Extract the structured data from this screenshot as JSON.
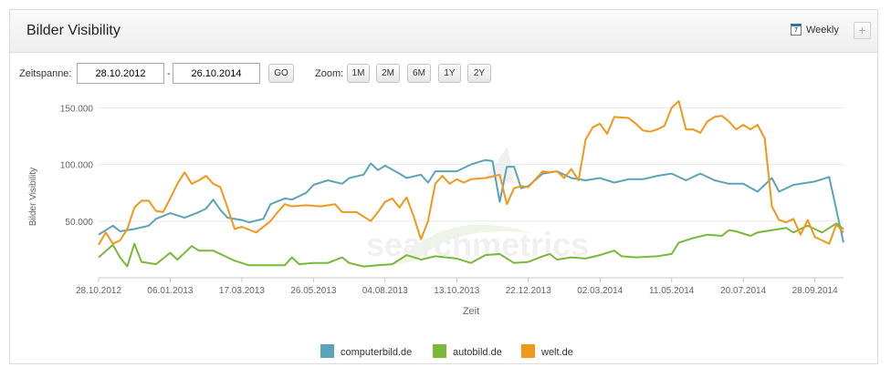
{
  "header": {
    "title": "Bilder Visibility",
    "weekly_label": "Weekly",
    "calendar_glyph": "7",
    "plus_label": "+"
  },
  "toolbar": {
    "range_label": "Zeitspanne:",
    "date_from": "28.10.2012",
    "date_to": "26.10.2014",
    "separator": "-",
    "go_label": "GO",
    "zoom_label": "Zoom:",
    "zoom_buttons": [
      "1M",
      "2M",
      "6M",
      "1Y",
      "2Y"
    ]
  },
  "chart_data": {
    "type": "line",
    "ylabel": "Bilder Visibility",
    "xlabel": "Zeit",
    "ylim": [
      0,
      160000
    ],
    "yticks": [
      50000,
      100000,
      150000
    ],
    "ytick_labels": [
      "50.000",
      "100.000",
      "150.000"
    ],
    "xlim": [
      "2012-10-28",
      "2014-10-26"
    ],
    "xticks": [
      "2012-10-28",
      "2013-01-06",
      "2013-03-17",
      "2013-05-26",
      "2013-08-04",
      "2013-10-13",
      "2013-12-22",
      "2014-03-02",
      "2014-05-11",
      "2014-07-20",
      "2014-09-28"
    ],
    "xtick_labels": [
      "28.10.2012",
      "06.01.2013",
      "17.03.2013",
      "26.05.2013",
      "04.08.2013",
      "13.10.2013",
      "22.12.2013",
      "02.03.2014",
      "11.05.2014",
      "20.07.2014",
      "28.09.2014"
    ],
    "grid": "horizontal",
    "legend": "bottom-center",
    "background_logo": "searchmetrics",
    "series": [
      {
        "name": "computerbild.de",
        "color": "#5ba3b8",
        "points": [
          [
            "2012-10-28",
            38000
          ],
          [
            "2012-11-11",
            46000
          ],
          [
            "2012-11-18",
            41000
          ],
          [
            "2012-12-02",
            43000
          ],
          [
            "2012-12-16",
            46000
          ],
          [
            "2012-12-23",
            52000
          ],
          [
            "2013-01-06",
            57000
          ],
          [
            "2013-01-20",
            53000
          ],
          [
            "2013-02-03",
            58000
          ],
          [
            "2013-02-10",
            61000
          ],
          [
            "2013-02-17",
            69000
          ],
          [
            "2013-02-24",
            60000
          ],
          [
            "2013-03-03",
            53000
          ],
          [
            "2013-03-17",
            51000
          ],
          [
            "2013-03-24",
            49000
          ],
          [
            "2013-04-07",
            52000
          ],
          [
            "2013-04-14",
            65000
          ],
          [
            "2013-04-28",
            70000
          ],
          [
            "2013-05-05",
            69000
          ],
          [
            "2013-05-19",
            75000
          ],
          [
            "2013-05-26",
            82000
          ],
          [
            "2013-06-09",
            86000
          ],
          [
            "2013-06-23",
            83000
          ],
          [
            "2013-06-30",
            88000
          ],
          [
            "2013-07-14",
            91000
          ],
          [
            "2013-07-21",
            101000
          ],
          [
            "2013-07-28",
            95000
          ],
          [
            "2013-08-04",
            99000
          ],
          [
            "2013-08-18",
            92000
          ],
          [
            "2013-08-25",
            88000
          ],
          [
            "2013-09-08",
            91000
          ],
          [
            "2013-09-15",
            84000
          ],
          [
            "2013-09-22",
            94000
          ],
          [
            "2013-10-13",
            94000
          ],
          [
            "2013-10-27",
            100000
          ],
          [
            "2013-11-10",
            104000
          ],
          [
            "2013-11-17",
            103000
          ],
          [
            "2013-11-24",
            67000
          ],
          [
            "2013-12-01",
            98000
          ],
          [
            "2013-12-08",
            98000
          ],
          [
            "2013-12-15",
            79000
          ],
          [
            "2013-12-22",
            81000
          ],
          [
            "2014-01-05",
            92000
          ],
          [
            "2014-01-19",
            94000
          ],
          [
            "2014-02-02",
            88000
          ],
          [
            "2014-02-16",
            86000
          ],
          [
            "2014-03-02",
            88000
          ],
          [
            "2014-03-16",
            84000
          ],
          [
            "2014-03-30",
            87000
          ],
          [
            "2014-04-13",
            87000
          ],
          [
            "2014-04-27",
            90000
          ],
          [
            "2014-05-11",
            92000
          ],
          [
            "2014-05-25",
            86000
          ],
          [
            "2014-06-08",
            92000
          ],
          [
            "2014-06-22",
            86000
          ],
          [
            "2014-07-06",
            83000
          ],
          [
            "2014-07-20",
            83000
          ],
          [
            "2014-08-03",
            76000
          ],
          [
            "2014-08-17",
            88000
          ],
          [
            "2014-08-24",
            76000
          ],
          [
            "2014-09-07",
            82000
          ],
          [
            "2014-09-28",
            85000
          ],
          [
            "2014-10-12",
            89000
          ],
          [
            "2014-10-26",
            31000
          ]
        ]
      },
      {
        "name": "autobild.de",
        "color": "#78b83a",
        "points": [
          [
            "2012-10-28",
            18000
          ],
          [
            "2012-11-11",
            29000
          ],
          [
            "2012-11-18",
            18000
          ],
          [
            "2012-11-25",
            10000
          ],
          [
            "2012-12-02",
            30000
          ],
          [
            "2012-12-09",
            14000
          ],
          [
            "2012-12-23",
            12000
          ],
          [
            "2013-01-06",
            22000
          ],
          [
            "2013-01-13",
            16000
          ],
          [
            "2013-01-27",
            28000
          ],
          [
            "2013-02-03",
            24000
          ],
          [
            "2013-02-17",
            24000
          ],
          [
            "2013-03-03",
            18000
          ],
          [
            "2013-03-10",
            15000
          ],
          [
            "2013-03-24",
            11000
          ],
          [
            "2013-04-07",
            11000
          ],
          [
            "2013-04-28",
            11000
          ],
          [
            "2013-05-05",
            18000
          ],
          [
            "2013-05-12",
            12000
          ],
          [
            "2013-05-26",
            13000
          ],
          [
            "2013-06-09",
            13000
          ],
          [
            "2013-06-23",
            18000
          ],
          [
            "2013-06-30",
            13000
          ],
          [
            "2013-07-14",
            10000
          ],
          [
            "2013-07-28",
            11000
          ],
          [
            "2013-08-11",
            12000
          ],
          [
            "2013-08-25",
            20000
          ],
          [
            "2013-09-08",
            16000
          ],
          [
            "2013-09-22",
            19000
          ],
          [
            "2013-10-13",
            17000
          ],
          [
            "2013-10-27",
            13000
          ],
          [
            "2013-11-10",
            20000
          ],
          [
            "2013-11-24",
            21000
          ],
          [
            "2013-12-08",
            13000
          ],
          [
            "2013-12-22",
            14000
          ],
          [
            "2014-01-05",
            19000
          ],
          [
            "2014-01-12",
            21000
          ],
          [
            "2014-01-19",
            16000
          ],
          [
            "2014-02-02",
            18000
          ],
          [
            "2014-02-16",
            17000
          ],
          [
            "2014-03-02",
            20000
          ],
          [
            "2014-03-16",
            24000
          ],
          [
            "2014-03-23",
            19000
          ],
          [
            "2014-04-06",
            18000
          ],
          [
            "2014-04-27",
            19000
          ],
          [
            "2014-05-11",
            21000
          ],
          [
            "2014-05-18",
            31000
          ],
          [
            "2014-06-01",
            35000
          ],
          [
            "2014-06-15",
            38000
          ],
          [
            "2014-06-29",
            37000
          ],
          [
            "2014-07-06",
            42000
          ],
          [
            "2014-07-13",
            41000
          ],
          [
            "2014-07-27",
            37000
          ],
          [
            "2014-08-03",
            40000
          ],
          [
            "2014-08-17",
            42000
          ],
          [
            "2014-08-31",
            44000
          ],
          [
            "2014-09-07",
            40000
          ],
          [
            "2014-09-21",
            46000
          ],
          [
            "2014-10-05",
            40000
          ],
          [
            "2014-10-19",
            48000
          ],
          [
            "2014-10-26",
            43000
          ]
        ]
      },
      {
        "name": "welt.de",
        "color": "#f0981c",
        "points": [
          [
            "2012-10-28",
            29000
          ],
          [
            "2012-11-04",
            40000
          ],
          [
            "2012-11-11",
            30000
          ],
          [
            "2012-11-18",
            33000
          ],
          [
            "2012-11-25",
            43000
          ],
          [
            "2012-12-02",
            62000
          ],
          [
            "2012-12-09",
            68000
          ],
          [
            "2012-12-16",
            68000
          ],
          [
            "2012-12-23",
            59000
          ],
          [
            "2012-12-30",
            58000
          ],
          [
            "2013-01-06",
            70000
          ],
          [
            "2013-01-13",
            83000
          ],
          [
            "2013-01-20",
            93000
          ],
          [
            "2013-01-27",
            83000
          ],
          [
            "2013-02-03",
            86000
          ],
          [
            "2013-02-10",
            90000
          ],
          [
            "2013-02-17",
            83000
          ],
          [
            "2013-02-24",
            80000
          ],
          [
            "2013-03-03",
            62000
          ],
          [
            "2013-03-10",
            43000
          ],
          [
            "2013-03-17",
            45000
          ],
          [
            "2013-03-31",
            40000
          ],
          [
            "2013-04-14",
            50000
          ],
          [
            "2013-04-21",
            58000
          ],
          [
            "2013-04-28",
            65000
          ],
          [
            "2013-05-05",
            63000
          ],
          [
            "2013-05-19",
            64000
          ],
          [
            "2013-06-02",
            63000
          ],
          [
            "2013-06-16",
            65000
          ],
          [
            "2013-06-23",
            58000
          ],
          [
            "2013-07-07",
            58000
          ],
          [
            "2013-07-21",
            50000
          ],
          [
            "2013-07-28",
            58000
          ],
          [
            "2013-08-04",
            67000
          ],
          [
            "2013-08-11",
            70000
          ],
          [
            "2013-08-18",
            62000
          ],
          [
            "2013-08-25",
            71000
          ],
          [
            "2013-09-01",
            54000
          ],
          [
            "2013-09-08",
            34000
          ],
          [
            "2013-09-15",
            50000
          ],
          [
            "2013-09-22",
            83000
          ],
          [
            "2013-09-29",
            90000
          ],
          [
            "2013-10-06",
            83000
          ],
          [
            "2013-10-13",
            87000
          ],
          [
            "2013-10-20",
            84000
          ],
          [
            "2013-10-27",
            87000
          ],
          [
            "2013-11-10",
            88000
          ],
          [
            "2013-11-24",
            91000
          ],
          [
            "2013-12-01",
            65000
          ],
          [
            "2013-12-08",
            79000
          ],
          [
            "2013-12-15",
            81000
          ],
          [
            "2013-12-22",
            80000
          ],
          [
            "2014-01-05",
            94000
          ],
          [
            "2014-01-12",
            93000
          ],
          [
            "2014-01-19",
            94000
          ],
          [
            "2014-01-26",
            88000
          ],
          [
            "2014-02-02",
            96000
          ],
          [
            "2014-02-09",
            86000
          ],
          [
            "2014-02-16",
            122000
          ],
          [
            "2014-02-23",
            133000
          ],
          [
            "2014-03-02",
            136000
          ],
          [
            "2014-03-09",
            127000
          ],
          [
            "2014-03-16",
            142000
          ],
          [
            "2014-03-30",
            141000
          ],
          [
            "2014-04-06",
            136000
          ],
          [
            "2014-04-13",
            130000
          ],
          [
            "2014-04-20",
            129000
          ],
          [
            "2014-04-27",
            131000
          ],
          [
            "2014-05-04",
            134000
          ],
          [
            "2014-05-11",
            150000
          ],
          [
            "2014-05-18",
            156000
          ],
          [
            "2014-05-25",
            131000
          ],
          [
            "2014-06-01",
            131000
          ],
          [
            "2014-06-08",
            128000
          ],
          [
            "2014-06-15",
            138000
          ],
          [
            "2014-06-22",
            142000
          ],
          [
            "2014-06-29",
            143000
          ],
          [
            "2014-07-06",
            138000
          ],
          [
            "2014-07-13",
            131000
          ],
          [
            "2014-07-20",
            135000
          ],
          [
            "2014-07-27",
            131000
          ],
          [
            "2014-08-03",
            135000
          ],
          [
            "2014-08-10",
            123000
          ],
          [
            "2014-08-17",
            63000
          ],
          [
            "2014-08-24",
            51000
          ],
          [
            "2014-08-31",
            49000
          ],
          [
            "2014-09-07",
            52000
          ],
          [
            "2014-09-14",
            38000
          ],
          [
            "2014-09-21",
            51000
          ],
          [
            "2014-09-28",
            36000
          ],
          [
            "2014-10-05",
            33000
          ],
          [
            "2014-10-12",
            30000
          ],
          [
            "2014-10-19",
            47000
          ],
          [
            "2014-10-26",
            40000
          ]
        ]
      }
    ]
  }
}
